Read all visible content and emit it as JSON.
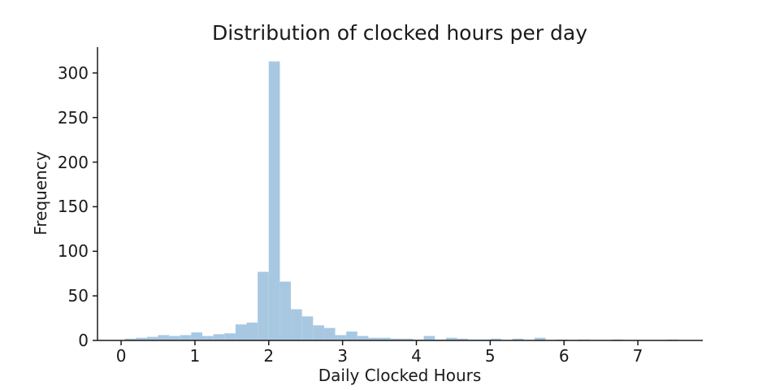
{
  "chart_data": {
    "type": "bar",
    "subtype": "histogram",
    "title": "Distribution of clocked hours per day",
    "xlabel": "Daily Clocked Hours",
    "ylabel": "Frequency",
    "bar_color": "#a8c8e2",
    "axis_color": "#1a1a1a",
    "text_color": "#1a1a1a",
    "background_color": "#ffffff",
    "grid": false,
    "legend_position": "none",
    "xlim": [
      -0.32,
      7.88
    ],
    "ylim": [
      0,
      329
    ],
    "xticks": [
      0,
      1,
      2,
      3,
      4,
      5,
      6,
      7
    ],
    "yticks": [
      0,
      50,
      100,
      150,
      200,
      250,
      300
    ],
    "bins": {
      "start": 0.05,
      "width": 0.15,
      "counts": [
        2,
        3,
        4,
        6,
        5,
        6,
        9,
        5,
        7,
        8,
        18,
        20,
        77,
        313,
        66,
        35,
        27,
        17,
        14,
        6,
        10,
        5,
        3,
        3,
        2,
        2,
        1,
        5,
        1,
        3,
        2,
        1,
        1,
        2,
        0,
        2,
        0,
        3,
        0,
        1,
        0,
        1,
        0,
        0,
        1,
        0,
        0,
        0,
        0,
        1,
        0
      ]
    },
    "peak_bin": {
      "range_start": 2.0,
      "range_end": 2.15,
      "count": 313
    }
  }
}
